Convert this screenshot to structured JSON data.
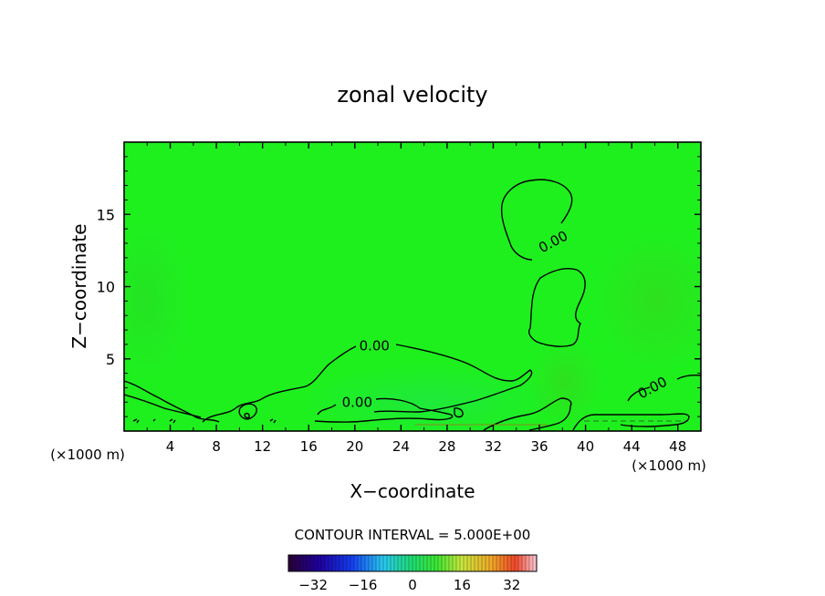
{
  "chart_data": {
    "type": "contour",
    "title": "zonal velocity",
    "xlabel": "X−coordinate",
    "ylabel": "Z−coordinate",
    "x_unit_label": "(×1000 m)",
    "xlim": [
      0,
      50
    ],
    "ylim": [
      0,
      20
    ],
    "x_ticks": [
      4,
      8,
      12,
      16,
      20,
      24,
      28,
      32,
      36,
      40,
      44,
      48
    ],
    "y_ticks": [
      5,
      10,
      15
    ],
    "contour_interval_text": "CONTOUR INTERVAL = 5.000E+00",
    "contour_labels": [
      {
        "text": "0.00",
        "x": 21.7,
        "y": 5.9
      },
      {
        "text": "0.00",
        "x": 20.2,
        "y": 2.0
      },
      {
        "text": "0.00",
        "x": 37.2,
        "y": 13.1
      },
      {
        "text": "0.00",
        "x": 45.8,
        "y": 3.0
      }
    ],
    "colorbar": {
      "range": [
        -40,
        40
      ],
      "tick_values": [
        -32,
        -16,
        0,
        16,
        32
      ],
      "tick_labels": [
        "−32",
        "−16",
        "0",
        "16",
        "32"
      ]
    },
    "colors": {
      "field": "#1ef01e",
      "contour": "#000000"
    }
  }
}
